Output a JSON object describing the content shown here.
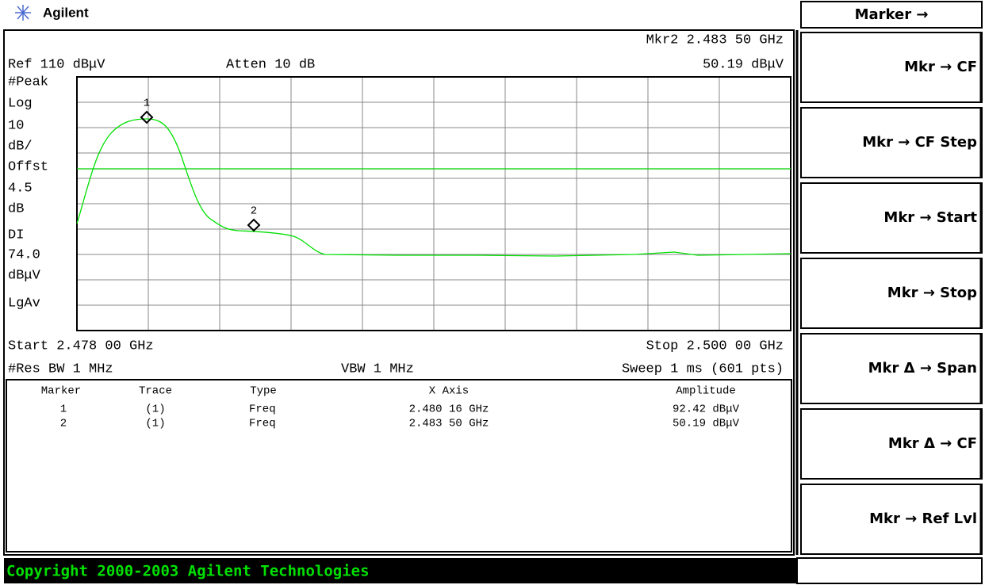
{
  "header": {
    "brand": "Agilent"
  },
  "screen": {
    "marker_readout": "Mkr2  2.483 50 GHz",
    "ref_level": "Ref 110 dBμV",
    "attenuation": "Atten 10 dB",
    "marker_amplitude": "50.19 dBμV",
    "left_labels": [
      "#Peak",
      "Log",
      "10",
      "dB/",
      "Offst",
      "4.5",
      "dB",
      "DI",
      "74.0",
      "dBμV",
      "LgAv"
    ],
    "marker_tags": [
      "1",
      "2"
    ],
    "start": "Start 2.478 00 GHz",
    "stop": "Stop 2.500 00 GHz",
    "res_bw": "#Res BW 1 MHz",
    "vbw": "VBW 1 MHz",
    "sweep": "Sweep 1 ms (601 pts)",
    "marker_table": {
      "columns": [
        "Marker",
        "Trace",
        "Type",
        "X Axis",
        "Amplitude"
      ],
      "rows": [
        [
          "1",
          "(1)",
          "Freq",
          "2.480 16 GHz",
          "92.42 dBμV"
        ],
        [
          "2",
          "(1)",
          "Freq",
          "2.483 50 GHz",
          "50.19 dBμV"
        ]
      ]
    }
  },
  "softkeys": {
    "title": "Marker →",
    "keys": [
      "Mkr → CF",
      "Mkr → CF Step",
      "Mkr → Start",
      "Mkr → Stop",
      "Mkr Δ → Span",
      "Mkr Δ → CF",
      "Mkr → Ref Lvl"
    ]
  },
  "status": {
    "copyright": "Copyright 2000-2003 Agilent Technologies"
  }
}
